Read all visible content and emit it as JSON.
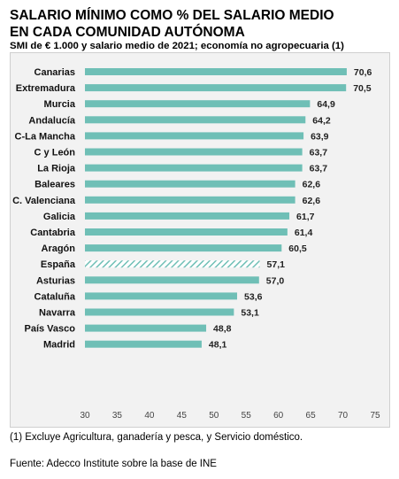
{
  "header": {
    "title_line1": "SALARIO MÍNIMO COMO % DEL SALARIO MEDIO",
    "title_line2": "EN CADA COMUNIDAD AUTÓNOMA",
    "subtitle": "SMI de € 1.000 y salario medio de 2021; economía no agropecuaria (1)"
  },
  "footer": {
    "note": "(1) Excluye Agricultura, ganadería y pesca, y Servicio doméstico.",
    "source": "Fuente: Adecco Institute sobre la base de INE"
  },
  "colors": {
    "bar": "#6fbfb6",
    "highlight_bar": "#6fbfb6",
    "background": "#f2f2f2"
  },
  "chart_data": {
    "type": "bar",
    "orientation": "horizontal",
    "categories": [
      "Canarias",
      "Extremadura",
      "Murcia",
      "Andalucía",
      "C-La Mancha",
      "C y León",
      "La Rioja",
      "Baleares",
      "C. Valenciana",
      "Galicia",
      "Cantabria",
      "Aragón",
      "España",
      "Asturias",
      "Cataluña",
      "Navarra",
      "País Vasco",
      "Madrid"
    ],
    "values": [
      70.6,
      70.5,
      64.9,
      64.2,
      63.9,
      63.7,
      63.7,
      62.6,
      62.6,
      61.7,
      61.4,
      60.5,
      57.1,
      57.0,
      53.6,
      53.1,
      48.8,
      48.1
    ],
    "value_labels": [
      "70,6",
      "70,5",
      "64,9",
      "64,2",
      "63,9",
      "63,7",
      "63,7",
      "62,6",
      "62,6",
      "61,7",
      "61,4",
      "60,5",
      "57,1",
      "57,0",
      "53,6",
      "53,1",
      "48,8",
      "48,1"
    ],
    "highlight": [
      "España"
    ],
    "xlim": [
      30,
      75
    ],
    "xticks": [
      "30",
      "35",
      "40",
      "45",
      "50",
      "55",
      "60",
      "65",
      "70",
      "75"
    ],
    "tick_values": [
      30,
      35,
      40,
      45,
      50,
      55,
      60,
      65,
      70,
      75
    ],
    "grid": false,
    "legend": "none"
  }
}
